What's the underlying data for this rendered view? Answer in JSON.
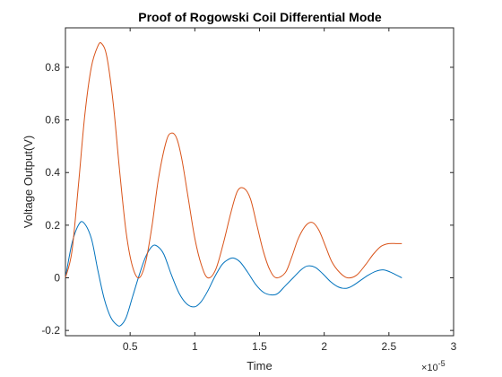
{
  "chart_data": {
    "type": "line",
    "title": "Proof of Rogowski Coil Differential Mode",
    "xlabel": "Time",
    "ylabel": "Voltage Output(V)",
    "x_exponent_label": "×10",
    "x_exponent_power": "-5",
    "xlim": [
      0,
      3
    ],
    "ylim": [
      -0.22,
      0.95
    ],
    "x_ticks": [
      {
        "value": 0.5,
        "label": "0.5"
      },
      {
        "value": 1,
        "label": "1"
      },
      {
        "value": 1.5,
        "label": "1.5"
      },
      {
        "value": 2,
        "label": "2"
      },
      {
        "value": 2.5,
        "label": "2.5"
      },
      {
        "value": 3,
        "label": "3"
      }
    ],
    "y_ticks": [
      {
        "value": -0.2,
        "label": "-0.2"
      },
      {
        "value": 0,
        "label": "0"
      },
      {
        "value": 0.2,
        "label": "0.2"
      },
      {
        "value": 0.4,
        "label": "0.4"
      },
      {
        "value": 0.6,
        "label": "0.6"
      },
      {
        "value": 0.8,
        "label": "0.8"
      }
    ],
    "grid": false,
    "series": [
      {
        "color": "#0072BD",
        "x": [
          0,
          0.05,
          0.1,
          0.14,
          0.2,
          0.25,
          0.3,
          0.35,
          0.4,
          0.43,
          0.47,
          0.52,
          0.57,
          0.62,
          0.67,
          0.71,
          0.76,
          0.82,
          0.88,
          0.94,
          1.0,
          1.05,
          1.1,
          1.15,
          1.21,
          1.26,
          1.3,
          1.35,
          1.41,
          1.47,
          1.53,
          1.59,
          1.64,
          1.7,
          1.76,
          1.82,
          1.87,
          1.93,
          1.99,
          2.05,
          2.11,
          2.17,
          2.22,
          2.28,
          2.34,
          2.4,
          2.46,
          2.51,
          2.56,
          2.6
        ],
        "y": [
          0.0,
          0.13,
          0.2,
          0.21,
          0.15,
          0.03,
          -0.08,
          -0.15,
          -0.18,
          -0.18,
          -0.15,
          -0.07,
          0.01,
          0.08,
          0.12,
          0.12,
          0.09,
          0.01,
          -0.06,
          -0.1,
          -0.11,
          -0.09,
          -0.05,
          0.0,
          0.05,
          0.07,
          0.075,
          0.06,
          0.02,
          -0.025,
          -0.055,
          -0.065,
          -0.06,
          -0.03,
          0.0,
          0.03,
          0.045,
          0.04,
          0.015,
          -0.015,
          -0.035,
          -0.04,
          -0.03,
          -0.01,
          0.01,
          0.025,
          0.03,
          0.022,
          0.01,
          0.0
        ]
      },
      {
        "color": "#D95319",
        "x": [
          0,
          0.05,
          0.1,
          0.15,
          0.2,
          0.25,
          0.28,
          0.32,
          0.37,
          0.42,
          0.47,
          0.52,
          0.57,
          0.62,
          0.67,
          0.72,
          0.78,
          0.82,
          0.86,
          0.9,
          0.95,
          1.0,
          1.05,
          1.1,
          1.16,
          1.22,
          1.28,
          1.33,
          1.38,
          1.43,
          1.48,
          1.53,
          1.58,
          1.63,
          1.7,
          1.75,
          1.8,
          1.86,
          1.91,
          1.96,
          2.01,
          2.06,
          2.12,
          2.18,
          2.25,
          2.32,
          2.38,
          2.44,
          2.5,
          2.56,
          2.6
        ],
        "y": [
          0.0,
          0.1,
          0.35,
          0.62,
          0.8,
          0.88,
          0.89,
          0.84,
          0.66,
          0.4,
          0.17,
          0.04,
          0.0,
          0.06,
          0.2,
          0.38,
          0.52,
          0.55,
          0.53,
          0.45,
          0.3,
          0.15,
          0.05,
          0.0,
          0.03,
          0.13,
          0.25,
          0.33,
          0.34,
          0.3,
          0.2,
          0.1,
          0.03,
          0.0,
          0.02,
          0.08,
          0.15,
          0.2,
          0.21,
          0.18,
          0.12,
          0.06,
          0.02,
          0.0,
          0.01,
          0.05,
          0.09,
          0.12,
          0.13,
          0.13,
          0.13
        ]
      }
    ]
  }
}
